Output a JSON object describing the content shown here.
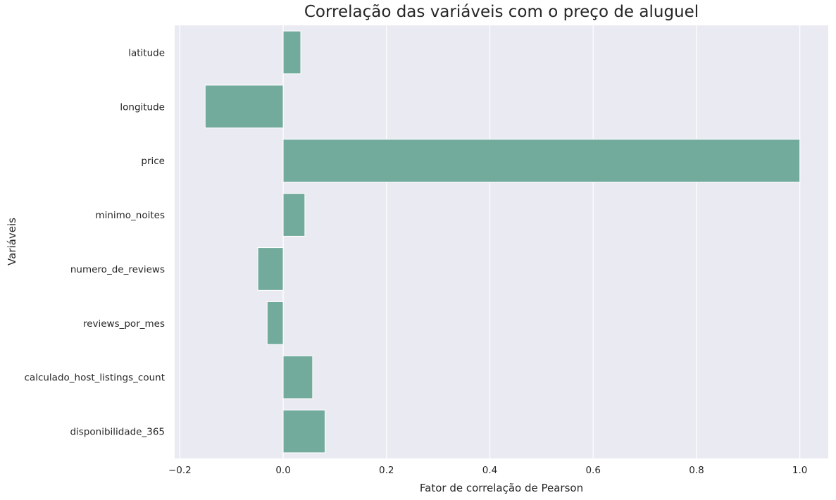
{
  "chart_data": {
    "type": "bar",
    "orientation": "horizontal",
    "title": "Correlação das variáveis com o preço de aluguel",
    "xlabel": "Fator de correlação de Pearson",
    "ylabel": "Variáveis",
    "categories": [
      "latitude",
      "longitude",
      "price",
      "minimo_noites",
      "numero_de_reviews",
      "reviews_por_mes",
      "calculado_host_listings_count",
      "disponibilidade_365"
    ],
    "values": [
      0.034,
      -0.151,
      1.0,
      0.042,
      -0.049,
      -0.031,
      0.057,
      0.081
    ],
    "xlim": [
      -0.21,
      1.055
    ],
    "xticks": [
      -0.2,
      0.0,
      0.2,
      0.4,
      0.6,
      0.8,
      1.0
    ],
    "xtick_labels": [
      "−0.2",
      "0.0",
      "0.2",
      "0.4",
      "0.6",
      "0.8",
      "1.0"
    ],
    "grid": true,
    "colors": {
      "bar": "#72aa9c",
      "plot_background": "#eaeaf2",
      "grid": "#ffffff",
      "text": "#262626"
    }
  }
}
